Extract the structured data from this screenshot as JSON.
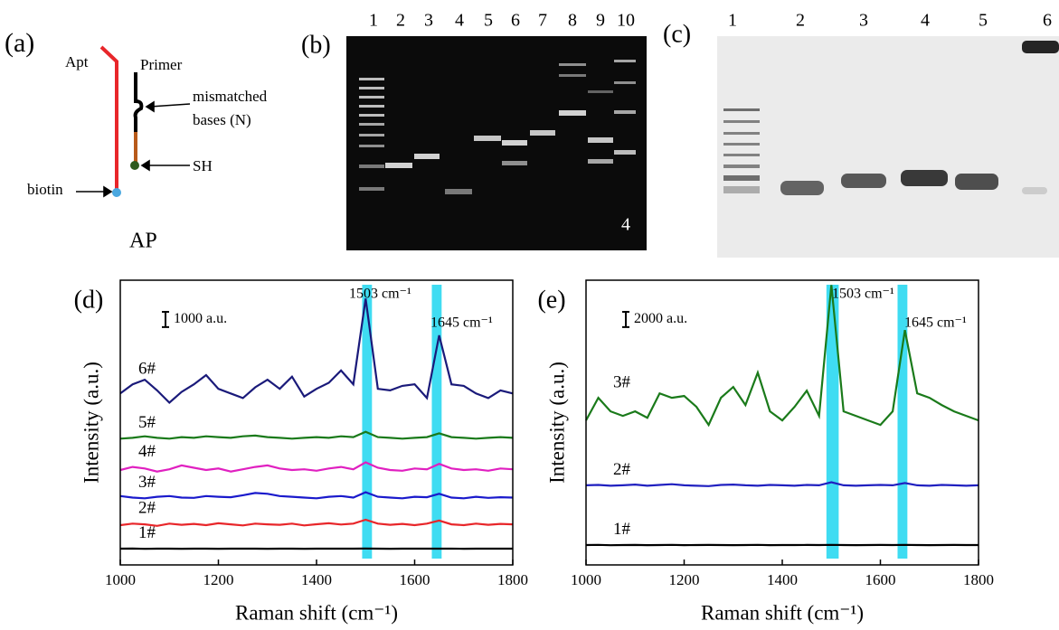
{
  "diagram": {
    "panel_label": "(a)",
    "apt": "Apt",
    "primer": "Primer",
    "mismatch_1": "mismatched",
    "mismatch_2": "bases  (N)",
    "sh": "SH",
    "biotin": "biotin",
    "caption": "AP"
  },
  "gel_b": {
    "panel_label": "(b)",
    "lanes": [
      1,
      2,
      3,
      4,
      5,
      6,
      7,
      8,
      9,
      10
    ],
    "inset_label": "4"
  },
  "gel_c": {
    "panel_label": "(c)",
    "lanes": [
      1,
      2,
      3,
      4,
      5,
      6
    ]
  },
  "chart_data": [
    {
      "type": "line",
      "panel_label": "(d)",
      "x_label": "Raman shift (cm⁻¹)",
      "y_label": "Intensity (a.u.)",
      "x": [
        1000,
        1025,
        1050,
        1075,
        1100,
        1125,
        1150,
        1175,
        1200,
        1225,
        1250,
        1275,
        1300,
        1325,
        1350,
        1375,
        1400,
        1425,
        1450,
        1475,
        1500,
        1525,
        1550,
        1575,
        1600,
        1625,
        1650,
        1675,
        1700,
        1725,
        1750,
        1775,
        1800
      ],
      "xlim": [
        1000,
        1800
      ],
      "xticks": [
        1000,
        1200,
        1400,
        1600,
        1800
      ],
      "ylim": [
        0,
        18600
      ],
      "scale_bar": {
        "value": 1000,
        "label": "1000 a.u."
      },
      "highlights": [
        [
          1493,
          1513
        ],
        [
          1635,
          1655
        ]
      ],
      "highlight_color": "#3fdcf2",
      "annotations": [
        "1503 cm⁻¹",
        "1645 cm⁻¹"
      ],
      "series": [
        {
          "name": "1#",
          "color": "#000000",
          "values": [
            1060,
            1070,
            1050,
            1060,
            1065,
            1055,
            1060,
            1062,
            1058,
            1060,
            1065,
            1060,
            1055,
            1060,
            1062,
            1058,
            1060,
            1060,
            1065,
            1060,
            1070,
            1060,
            1058,
            1060,
            1062,
            1060,
            1065,
            1060,
            1058,
            1060,
            1062,
            1060,
            1060
          ]
        },
        {
          "name": "2#",
          "color": "#e8262a",
          "values": [
            2600,
            2700,
            2650,
            2550,
            2700,
            2620,
            2680,
            2600,
            2720,
            2650,
            2580,
            2700,
            2650,
            2620,
            2700,
            2580,
            2660,
            2720,
            2640,
            2700,
            2950,
            2700,
            2620,
            2680,
            2600,
            2700,
            2900,
            2650,
            2600,
            2700,
            2620,
            2680,
            2650
          ]
        },
        {
          "name": "3#",
          "color": "#1a1acc",
          "values": [
            4500,
            4400,
            4350,
            4450,
            4500,
            4400,
            4380,
            4500,
            4450,
            4420,
            4550,
            4700,
            4650,
            4500,
            4450,
            4400,
            4350,
            4450,
            4500,
            4400,
            4750,
            4450,
            4400,
            4350,
            4450,
            4420,
            4650,
            4400,
            4350,
            4450,
            4380,
            4420,
            4400
          ]
        },
        {
          "name": "4#",
          "color": "#e020c0",
          "values": [
            6200,
            6400,
            6300,
            6100,
            6250,
            6500,
            6350,
            6200,
            6300,
            6100,
            6250,
            6400,
            6500,
            6300,
            6200,
            6250,
            6150,
            6300,
            6400,
            6250,
            6700,
            6350,
            6200,
            6150,
            6300,
            6250,
            6600,
            6300,
            6200,
            6250,
            6150,
            6300,
            6250
          ]
        },
        {
          "name": "5#",
          "color": "#1a7a1a",
          "values": [
            8250,
            8300,
            8400,
            8300,
            8250,
            8350,
            8300,
            8400,
            8350,
            8300,
            8400,
            8450,
            8350,
            8300,
            8250,
            8300,
            8350,
            8300,
            8400,
            8350,
            8700,
            8350,
            8300,
            8250,
            8300,
            8350,
            8600,
            8350,
            8300,
            8250,
            8300,
            8350,
            8300
          ]
        },
        {
          "name": "6#",
          "color": "#1a1a7a",
          "values": [
            11200,
            11800,
            12100,
            11400,
            10600,
            11300,
            11800,
            12400,
            11500,
            11200,
            10900,
            11600,
            12100,
            11500,
            12300,
            11000,
            11500,
            11900,
            12700,
            11800,
            17400,
            11500,
            11400,
            11700,
            11800,
            10900,
            15000,
            11800,
            11700,
            11200,
            10900,
            11400,
            11200
          ]
        }
      ]
    },
    {
      "type": "line",
      "panel_label": "(e)",
      "x_label": "Raman shift (cm⁻¹)",
      "y_label": "Intensity (a.u.)",
      "x": [
        1000,
        1025,
        1050,
        1075,
        1100,
        1125,
        1150,
        1175,
        1200,
        1225,
        1250,
        1275,
        1300,
        1325,
        1350,
        1375,
        1400,
        1425,
        1450,
        1475,
        1500,
        1525,
        1550,
        1575,
        1600,
        1625,
        1650,
        1675,
        1700,
        1725,
        1750,
        1775,
        1800
      ],
      "xlim": [
        1000,
        1800
      ],
      "xticks": [
        1000,
        1200,
        1400,
        1600,
        1800
      ],
      "ylim": [
        0,
        37200
      ],
      "scale_bar": {
        "value": 2000,
        "label": "2000 a.u."
      },
      "highlights": [
        [
          1490,
          1515
        ],
        [
          1635,
          1655
        ]
      ],
      "highlight_color": "#3fdcf2",
      "annotations": [
        "1503 cm⁻¹",
        "1645 cm⁻¹"
      ],
      "series": [
        {
          "name": "1#",
          "color": "#000000",
          "values": [
            2600,
            2620,
            2580,
            2600,
            2610,
            2590,
            2600,
            2620,
            2590,
            2600,
            2610,
            2600,
            2590,
            2600,
            2620,
            2590,
            2600,
            2600,
            2610,
            2600,
            2620,
            2600,
            2590,
            2600,
            2610,
            2600,
            2620,
            2600,
            2590,
            2600,
            2610,
            2600,
            2600
          ]
        },
        {
          "name": "2#",
          "color": "#2020c0",
          "values": [
            10400,
            10450,
            10350,
            10400,
            10500,
            10350,
            10450,
            10550,
            10400,
            10350,
            10300,
            10450,
            10500,
            10400,
            10350,
            10450,
            10400,
            10350,
            10450,
            10400,
            10800,
            10400,
            10350,
            10400,
            10450,
            10400,
            10700,
            10400,
            10350,
            10450,
            10400,
            10350,
            10400
          ]
        },
        {
          "name": "3#",
          "color": "#1a7a1a",
          "values": [
            18880,
            21830,
            20060,
            19470,
            20060,
            19230,
            22420,
            21830,
            22070,
            20650,
            18290,
            21830,
            23250,
            20890,
            25130,
            20060,
            18880,
            20650,
            22770,
            19470,
            36580,
            20060,
            19470,
            18880,
            18290,
            20060,
            30680,
            22420,
            21830,
            20890,
            20060,
            19470,
            18880
          ]
        }
      ]
    }
  ]
}
